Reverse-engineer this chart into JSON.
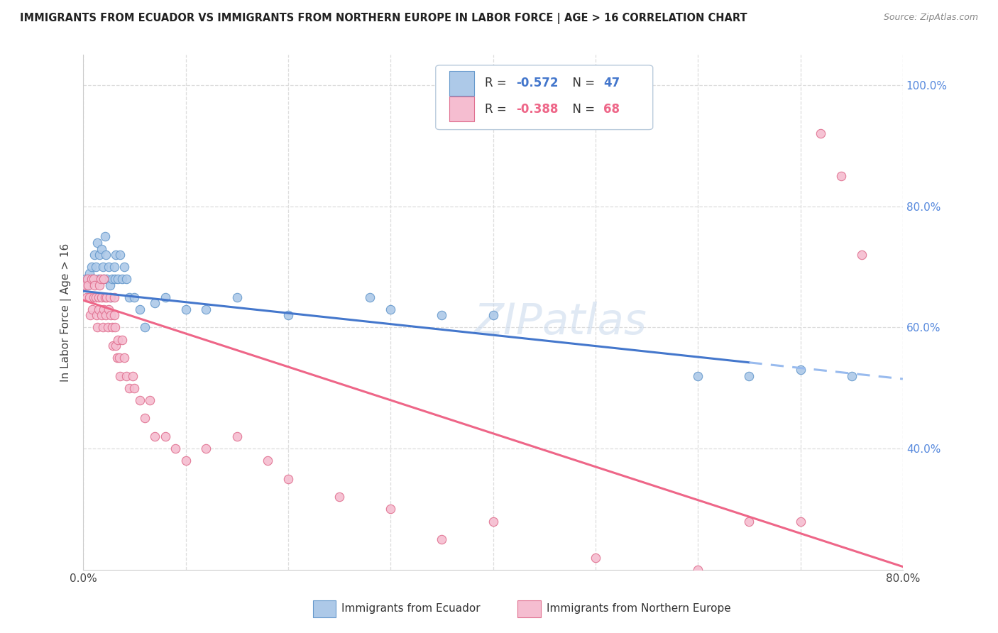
{
  "title": "IMMIGRANTS FROM ECUADOR VS IMMIGRANTS FROM NORTHERN EUROPE IN LABOR FORCE | AGE > 16 CORRELATION CHART",
  "source": "Source: ZipAtlas.com",
  "ylabel": "In Labor Force | Age > 16",
  "xlim": [
    0.0,
    0.8
  ],
  "ylim": [
    0.2,
    1.05
  ],
  "ecuador_color": "#adc9e8",
  "ecuador_edge": "#6699cc",
  "northern_europe_color": "#f5bdd0",
  "northern_europe_edge": "#e07090",
  "blue_line_color": "#4477cc",
  "pink_line_color": "#ee6688",
  "blue_dashed_color": "#99bbee",
  "watermark": "ZIPatlas",
  "ecuador_x": [
    0.002,
    0.004,
    0.005,
    0.006,
    0.008,
    0.01,
    0.011,
    0.012,
    0.014,
    0.015,
    0.016,
    0.018,
    0.019,
    0.02,
    0.021,
    0.022,
    0.023,
    0.025,
    0.026,
    0.027,
    0.028,
    0.03,
    0.031,
    0.032,
    0.034,
    0.036,
    0.038,
    0.04,
    0.042,
    0.045,
    0.05,
    0.055,
    0.06,
    0.07,
    0.08,
    0.1,
    0.12,
    0.15,
    0.2,
    0.28,
    0.3,
    0.35,
    0.4,
    0.6,
    0.65,
    0.7,
    0.75
  ],
  "ecuador_y": [
    0.68,
    0.67,
    0.68,
    0.69,
    0.7,
    0.68,
    0.72,
    0.7,
    0.74,
    0.68,
    0.72,
    0.73,
    0.7,
    0.68,
    0.75,
    0.72,
    0.68,
    0.7,
    0.67,
    0.65,
    0.68,
    0.7,
    0.68,
    0.72,
    0.68,
    0.72,
    0.68,
    0.7,
    0.68,
    0.65,
    0.65,
    0.63,
    0.6,
    0.64,
    0.65,
    0.63,
    0.63,
    0.65,
    0.62,
    0.65,
    0.63,
    0.62,
    0.62,
    0.52,
    0.52,
    0.53,
    0.52
  ],
  "northern_europe_x": [
    0.002,
    0.003,
    0.004,
    0.005,
    0.006,
    0.007,
    0.008,
    0.009,
    0.01,
    0.01,
    0.011,
    0.012,
    0.013,
    0.014,
    0.015,
    0.015,
    0.016,
    0.017,
    0.018,
    0.018,
    0.019,
    0.02,
    0.02,
    0.021,
    0.022,
    0.023,
    0.024,
    0.025,
    0.026,
    0.027,
    0.028,
    0.029,
    0.03,
    0.03,
    0.031,
    0.032,
    0.033,
    0.034,
    0.035,
    0.036,
    0.038,
    0.04,
    0.042,
    0.045,
    0.048,
    0.05,
    0.055,
    0.06,
    0.065,
    0.07,
    0.08,
    0.09,
    0.1,
    0.12,
    0.15,
    0.18,
    0.2,
    0.25,
    0.3,
    0.35,
    0.4,
    0.5,
    0.6,
    0.65,
    0.7,
    0.72,
    0.74,
    0.76
  ],
  "northern_europe_y": [
    0.67,
    0.65,
    0.68,
    0.67,
    0.65,
    0.62,
    0.68,
    0.63,
    0.65,
    0.68,
    0.67,
    0.65,
    0.62,
    0.6,
    0.65,
    0.63,
    0.67,
    0.68,
    0.65,
    0.62,
    0.6,
    0.63,
    0.68,
    0.65,
    0.62,
    0.65,
    0.6,
    0.63,
    0.65,
    0.62,
    0.6,
    0.57,
    0.62,
    0.65,
    0.6,
    0.57,
    0.55,
    0.58,
    0.55,
    0.52,
    0.58,
    0.55,
    0.52,
    0.5,
    0.52,
    0.5,
    0.48,
    0.45,
    0.48,
    0.42,
    0.42,
    0.4,
    0.38,
    0.4,
    0.42,
    0.38,
    0.35,
    0.32,
    0.3,
    0.25,
    0.28,
    0.22,
    0.2,
    0.28,
    0.28,
    0.92,
    0.85,
    0.72
  ],
  "line_blue_x0": 0.0,
  "line_blue_y0": 0.66,
  "line_blue_x1": 0.8,
  "line_blue_y1": 0.515,
  "line_blue_solid_end": 0.65,
  "line_pink_x0": 0.0,
  "line_pink_y0": 0.645,
  "line_pink_x1": 0.8,
  "line_pink_y1": 0.205
}
